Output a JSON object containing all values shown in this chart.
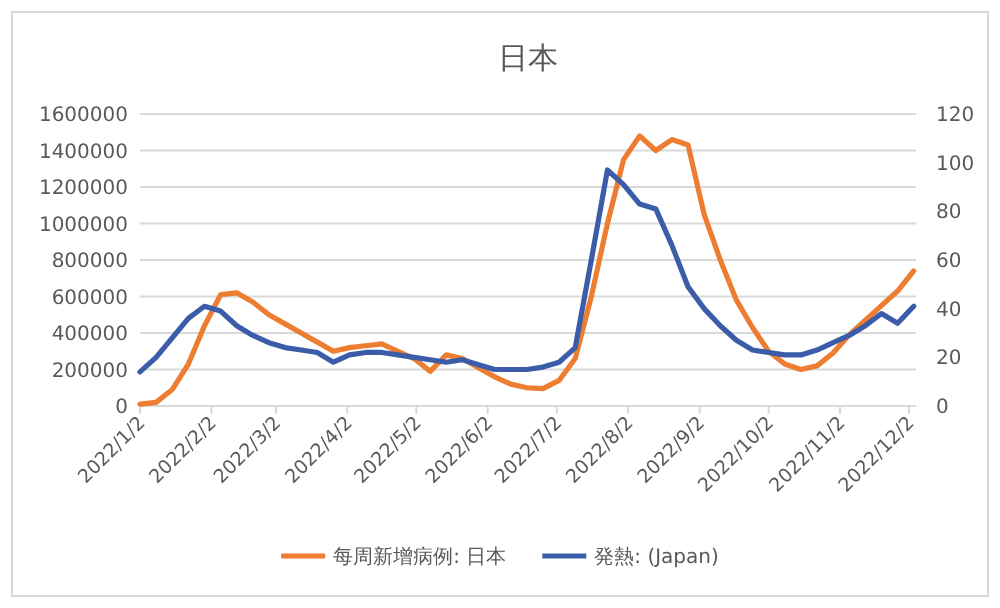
{
  "chart_data": {
    "type": "line",
    "title": "日本",
    "x": [
      "2022-01-02",
      "2022-01-09",
      "2022-01-16",
      "2022-01-23",
      "2022-01-30",
      "2022-02-06",
      "2022-02-13",
      "2022-02-20",
      "2022-02-27",
      "2022-03-06",
      "2022-03-13",
      "2022-03-20",
      "2022-03-27",
      "2022-04-03",
      "2022-04-10",
      "2022-04-17",
      "2022-04-24",
      "2022-05-01",
      "2022-05-08",
      "2022-05-15",
      "2022-05-22",
      "2022-05-29",
      "2022-06-05",
      "2022-06-12",
      "2022-06-19",
      "2022-06-26",
      "2022-07-03",
      "2022-07-10",
      "2022-07-17",
      "2022-07-24",
      "2022-07-31",
      "2022-08-07",
      "2022-08-14",
      "2022-08-21",
      "2022-08-28",
      "2022-09-04",
      "2022-09-11",
      "2022-09-18",
      "2022-09-25",
      "2022-10-02",
      "2022-10-09",
      "2022-10-16",
      "2022-10-23",
      "2022-10-30",
      "2022-11-06",
      "2022-11-13",
      "2022-11-20",
      "2022-11-27",
      "2022-12-04"
    ],
    "series": [
      {
        "name": "每周新增病例: 日本",
        "color": "#ed7d31",
        "values": [
          10000,
          20000,
          90000,
          230000,
          440000,
          610000,
          620000,
          570000,
          500000,
          450000,
          400000,
          350000,
          300000,
          320000,
          330000,
          340000,
          300000,
          260000,
          190000,
          280000,
          260000,
          210000,
          160000,
          120000,
          100000,
          95000,
          140000,
          260000,
          600000,
          1000000,
          1350000,
          1480000,
          1400000,
          1460000,
          1430000,
          1050000,
          800000,
          580000,
          430000,
          300000,
          230000,
          200000,
          220000,
          290000,
          390000,
          470000,
          550000,
          630000,
          740000
        ]
      },
      {
        "name": "発熱: (Japan)",
        "color": "#3b5ca8",
        "axis": "y2",
        "values": [
          14,
          20,
          28,
          36,
          41,
          39,
          33,
          29,
          26,
          24,
          23,
          22,
          18,
          21,
          22,
          22,
          21,
          20,
          19,
          18,
          19,
          17,
          15,
          15,
          15,
          16,
          18,
          24,
          60,
          97,
          91,
          83,
          81,
          66,
          49,
          40,
          33,
          27,
          23,
          22,
          21,
          21,
          23,
          26,
          29,
          33,
          38,
          34,
          41
        ]
      }
    ],
    "xlim": [
      "2022-01-02",
      "2022-12-05"
    ],
    "xticks": [
      {
        "value": "2022-01-02",
        "label": "2022/1/2"
      },
      {
        "value": "2022-02-02",
        "label": "2022/2/2"
      },
      {
        "value": "2022-03-02",
        "label": "2022/3/2"
      },
      {
        "value": "2022-04-02",
        "label": "2022/4/2"
      },
      {
        "value": "2022-05-02",
        "label": "2022/5/2"
      },
      {
        "value": "2022-06-02",
        "label": "2022/6/2"
      },
      {
        "value": "2022-07-02",
        "label": "2022/7/2"
      },
      {
        "value": "2022-08-02",
        "label": "2022/8/2"
      },
      {
        "value": "2022-09-02",
        "label": "2022/9/2"
      },
      {
        "value": "2022-10-02",
        "label": "2022/10/2"
      },
      {
        "value": "2022-11-02",
        "label": "2022/11/2"
      },
      {
        "value": "2022-12-02",
        "label": "2022/12/2"
      }
    ],
    "ylim": [
      0,
      1600000
    ],
    "yticks": [
      0,
      200000,
      400000,
      600000,
      800000,
      1000000,
      1200000,
      1400000,
      1600000
    ],
    "y2lim": [
      0,
      120
    ],
    "y2ticks": [
      0,
      20,
      40,
      60,
      80,
      100,
      120
    ],
    "grid": "y",
    "legend": "bottom"
  }
}
